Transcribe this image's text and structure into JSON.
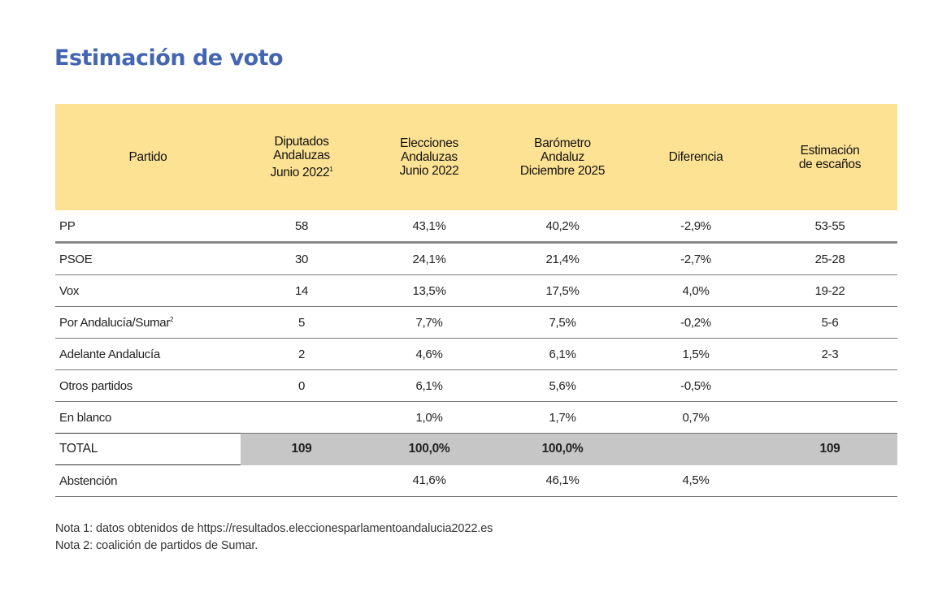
{
  "title": "Estimación de voto",
  "table": {
    "headers": [
      {
        "lines": [
          "Partido"
        ],
        "sup": ""
      },
      {
        "lines": [
          "Diputados",
          "Andaluzas",
          "Junio 2022"
        ],
        "sup": "1"
      },
      {
        "lines": [
          "Elecciones",
          "Andaluzas",
          "Junio 2022"
        ],
        "sup": ""
      },
      {
        "lines": [
          "Barómetro",
          "Andaluz",
          "Diciembre 2025"
        ],
        "sup": ""
      },
      {
        "lines": [
          "Diferencia"
        ],
        "sup": ""
      },
      {
        "lines": [
          "Estimación",
          "de escaños"
        ],
        "sup": ""
      }
    ],
    "rows": [
      {
        "partido": "PP",
        "sup": "",
        "diputados": "58",
        "elecciones": "43,1%",
        "barometro": "40,2%",
        "diferencia": "-2,9%",
        "escanos": "53-55"
      },
      {
        "partido": "PSOE",
        "sup": "",
        "diputados": "30",
        "elecciones": "24,1%",
        "barometro": "21,4%",
        "diferencia": "-2,7%",
        "escanos": "25-28"
      },
      {
        "partido": "Vox",
        "sup": "",
        "diputados": "14",
        "elecciones": "13,5%",
        "barometro": "17,5%",
        "diferencia": "4,0%",
        "escanos": "19-22"
      },
      {
        "partido": "Por Andalucía/Sumar",
        "sup": "2",
        "diputados": "5",
        "elecciones": "7,7%",
        "barometro": "7,5%",
        "diferencia": "-0,2%",
        "escanos": "5-6"
      },
      {
        "partido": "Adelante Andalucía",
        "sup": "",
        "diputados": "2",
        "elecciones": "4,6%",
        "barometro": "6,1%",
        "diferencia": "1,5%",
        "escanos": "2-3"
      },
      {
        "partido": "Otros partidos",
        "sup": "",
        "diputados": "0",
        "elecciones": "6,1%",
        "barometro": "5,6%",
        "diferencia": "-0,5%",
        "escanos": ""
      },
      {
        "partido": "En blanco",
        "sup": "",
        "diputados": "",
        "elecciones": "1,0%",
        "barometro": "1,7%",
        "diferencia": "0,7%",
        "escanos": ""
      }
    ],
    "total": {
      "partido": "TOTAL",
      "diputados": "109",
      "elecciones": "100,0%",
      "barometro": "100,0%",
      "diferencia": "",
      "escanos": "109"
    },
    "abstencion": {
      "partido": "Abstención",
      "diputados": "",
      "elecciones": "41,6%",
      "barometro": "46,1%",
      "diferencia": "4,5%",
      "escanos": ""
    }
  },
  "notes": [
    "Nota 1: datos obtenidos de https://resultados.eleccionesparlamentoandalucia2022.es",
    "Nota 2: coalición de partidos de Sumar."
  ],
  "colors": {
    "title": "#4466b0",
    "header_bg": "#fde293",
    "total_bg": "#c6c6c6"
  }
}
